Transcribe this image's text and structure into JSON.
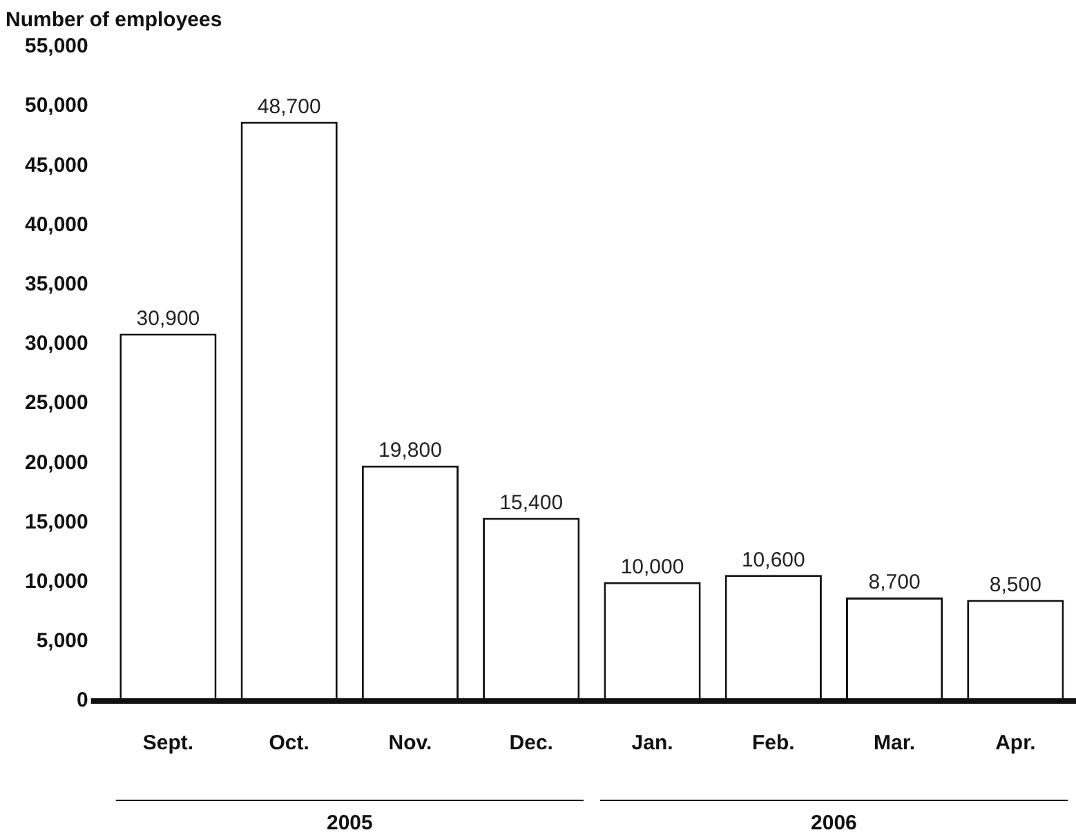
{
  "chart_data": {
    "type": "bar",
    "title": "Number of employees",
    "categories": [
      "Sept.",
      "Oct.",
      "Nov.",
      "Dec.",
      "Jan.",
      "Feb.",
      "Mar.",
      "Apr."
    ],
    "values": [
      30900,
      48700,
      19800,
      15400,
      10000,
      10600,
      8700,
      8500
    ],
    "value_labels": [
      "30,900",
      "48,700",
      "19,800",
      "15,400",
      "10,000",
      "10,600",
      "8,700",
      "8,500"
    ],
    "color": "#ffffff",
    "ylim": [
      0,
      55000
    ],
    "yticks": [
      0,
      {
        "value": 5000,
        "label": "5,000"
      },
      {
        "value": 10000,
        "label": "10,000"
      },
      {
        "value": 15000,
        "label": "15,000"
      },
      {
        "value": 20000,
        "label": "20,000"
      },
      {
        "value": 25000,
        "label": "25,000"
      },
      {
        "value": 30000,
        "label": "30,000"
      },
      {
        "value": 35000,
        "label": "35,000"
      },
      {
        "value": 40000,
        "label": "40,000"
      },
      {
        "value": 45000,
        "label": "45,000"
      },
      {
        "value": 50000,
        "label": "50,000"
      },
      {
        "value": 55000,
        "label": "55,000"
      }
    ],
    "grid": false,
    "legend": false,
    "annotations": [
      "2005",
      "2006"
    ]
  }
}
